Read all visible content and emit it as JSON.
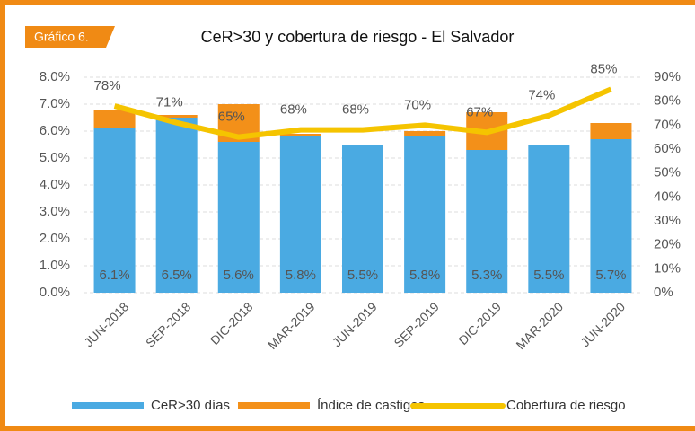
{
  "chart_data": {
    "type": "bar",
    "badge": "Gráfico 6.",
    "title": "CeR>30 y cobertura de riesgo - El Salvador",
    "categories": [
      "JUN-2018",
      "SEP-2018",
      "DIC-2018",
      "MAR-2019",
      "JUN-2019",
      "SEP-2019",
      "DIC-2019",
      "MAR-2020",
      "JUN-2020"
    ],
    "series": [
      {
        "name": "CeR>30 días",
        "type": "bar",
        "color": "#4aaae2",
        "values": [
          6.1,
          6.5,
          5.6,
          5.8,
          5.5,
          5.8,
          5.3,
          5.5,
          5.7
        ],
        "value_labels": [
          "6.1%",
          "6.5%",
          "5.6%",
          "5.8%",
          "5.5%",
          "5.8%",
          "5.3%",
          "5.5%",
          "5.7%"
        ]
      },
      {
        "name": "Índice de castigos",
        "type": "bar",
        "color": "#f39019",
        "values": [
          0.7,
          0.1,
          1.4,
          0.1,
          0,
          0.2,
          1.4,
          0,
          0.6
        ]
      },
      {
        "name": "Cobertura de riesgo",
        "type": "line",
        "axis": "y2",
        "color": "#f5c400",
        "values": [
          78,
          71,
          65,
          68,
          68,
          70,
          67,
          74,
          85
        ],
        "value_labels": [
          "78%",
          "71%",
          "65%",
          "68%",
          "68%",
          "70%",
          "67%",
          "74%",
          "85%"
        ]
      }
    ],
    "stacked": true,
    "ylim": [
      0,
      8
    ],
    "yticks": [
      {
        "value": 0,
        "label": "0.0%"
      },
      {
        "value": 1,
        "label": "1.0%"
      },
      {
        "value": 2,
        "label": "2.0%"
      },
      {
        "value": 3,
        "label": "3.0%"
      },
      {
        "value": 4,
        "label": "4.0%"
      },
      {
        "value": 5,
        "label": "5.0%"
      },
      {
        "value": 6,
        "label": "6.0%"
      },
      {
        "value": 7,
        "label": "7.0%"
      },
      {
        "value": 8,
        "label": "8.0%"
      }
    ],
    "y2lim": [
      0,
      90
    ],
    "y2ticks": [
      {
        "value": 0,
        "label": "0%"
      },
      {
        "value": 10,
        "label": "10%"
      },
      {
        "value": 20,
        "label": "20%"
      },
      {
        "value": 30,
        "label": "30%"
      },
      {
        "value": 40,
        "label": "40%"
      },
      {
        "value": 50,
        "label": "50%"
      },
      {
        "value": 60,
        "label": "60%"
      },
      {
        "value": 70,
        "label": "70%"
      },
      {
        "value": 80,
        "label": "80%"
      },
      {
        "value": 90,
        "label": "90%"
      }
    ],
    "grid": true,
    "legend": "bottom"
  }
}
